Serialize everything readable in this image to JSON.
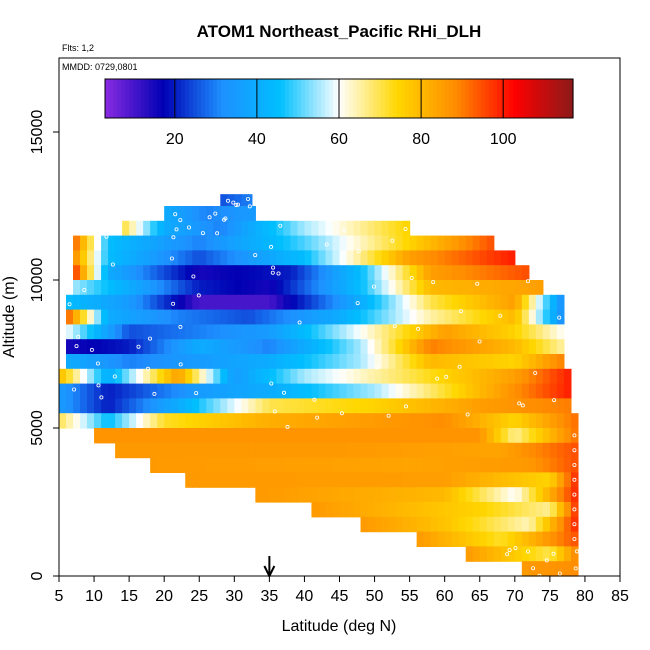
{
  "chart_data": {
    "type": "heatmap",
    "title": "ATOM1 Northeast_Pacific RHi_DLH",
    "flights_note": "Flts: 1,2",
    "date_note": "MMDD: 0729,0801",
    "xlabel": "Latitude (deg N)",
    "ylabel": "Altitude (m)",
    "xlim": [
      5,
      85
    ],
    "ylim": [
      0,
      17500
    ],
    "xticks": [
      5,
      10,
      15,
      20,
      25,
      30,
      35,
      40,
      45,
      50,
      55,
      60,
      65,
      70,
      75,
      80,
      85
    ],
    "yticks": [
      0,
      5000,
      10000,
      15000
    ],
    "colorbar": {
      "range": [
        3,
        117
      ],
      "ticks": [
        20,
        40,
        60,
        80,
        100
      ],
      "colors": [
        "#8A2BE2",
        "#0000B3",
        "#1E90FF",
        "#00BFFF",
        "#FFFFFF",
        "#FFD700",
        "#FF8C00",
        "#FF0000",
        "#8B1A1A"
      ]
    },
    "marker_latitude": 35,
    "bands": [
      {
        "alt_range": [
          12500,
          12900
        ],
        "lat_range": [
          28,
          32.5
        ],
        "values": [
          [
            28,
            25
          ],
          [
            32.5,
            30
          ]
        ]
      },
      {
        "alt_range": [
          12000,
          12500
        ],
        "lat_range": [
          20,
          33
        ],
        "values": [
          [
            20,
            40
          ],
          [
            26,
            30
          ],
          [
            33,
            35
          ]
        ]
      },
      {
        "alt_range": [
          11500,
          12000
        ],
        "lat_range": [
          14,
          55
        ],
        "values": [
          [
            14,
            72
          ],
          [
            20,
            40
          ],
          [
            28,
            30
          ],
          [
            40,
            55
          ],
          [
            55,
            75
          ]
        ]
      },
      {
        "alt_range": [
          11000,
          11500
        ],
        "lat_range": [
          7,
          67
        ],
        "values": [
          [
            7,
            95
          ],
          [
            12,
            45
          ],
          [
            25,
            30
          ],
          [
            40,
            50
          ],
          [
            55,
            75
          ],
          [
            67,
            95
          ]
        ]
      },
      {
        "alt_range": [
          10500,
          11000
        ],
        "lat_range": [
          7,
          70
        ],
        "values": [
          [
            7,
            90
          ],
          [
            12,
            45
          ],
          [
            25,
            25
          ],
          [
            40,
            45
          ],
          [
            55,
            85
          ],
          [
            70,
            100
          ]
        ]
      },
      {
        "alt_range": [
          10000,
          10500
        ],
        "lat_range": [
          7,
          72
        ],
        "values": [
          [
            7,
            100
          ],
          [
            12,
            40
          ],
          [
            25,
            15
          ],
          [
            38,
            20
          ],
          [
            48,
            45
          ],
          [
            58,
            85
          ],
          [
            72,
            95
          ]
        ]
      },
      {
        "alt_range": [
          9500,
          10000
        ],
        "lat_range": [
          7,
          74
        ],
        "values": [
          [
            7,
            55
          ],
          [
            15,
            40
          ],
          [
            25,
            20
          ],
          [
            35,
            15
          ],
          [
            48,
            45
          ],
          [
            58,
            80
          ],
          [
            74,
            85
          ]
        ]
      },
      {
        "alt_range": [
          9000,
          9500
        ],
        "lat_range": [
          6,
          77
        ],
        "values": [
          [
            6,
            45
          ],
          [
            15,
            35
          ],
          [
            25,
            10
          ],
          [
            35,
            10
          ],
          [
            48,
            40
          ],
          [
            58,
            70
          ],
          [
            70,
            85
          ],
          [
            77,
            30
          ]
        ]
      },
      {
        "alt_range": [
          8500,
          9000
        ],
        "lat_range": [
          6,
          77
        ],
        "values": [
          [
            6,
            95
          ],
          [
            12,
            40
          ],
          [
            22,
            30
          ],
          [
            32,
            25
          ],
          [
            45,
            40
          ],
          [
            58,
            65
          ],
          [
            70,
            80
          ],
          [
            77,
            30
          ]
        ]
      },
      {
        "alt_range": [
          8000,
          8500
        ],
        "lat_range": [
          6,
          77
        ],
        "values": [
          [
            6,
            60
          ],
          [
            15,
            25
          ],
          [
            25,
            30
          ],
          [
            35,
            35
          ],
          [
            48,
            60
          ],
          [
            60,
            85
          ],
          [
            70,
            75
          ],
          [
            77,
            60
          ]
        ]
      },
      {
        "alt_range": [
          7500,
          8000
        ],
        "lat_range": [
          6,
          77
        ],
        "values": [
          [
            6,
            15
          ],
          [
            15,
            20
          ],
          [
            25,
            40
          ],
          [
            35,
            30
          ],
          [
            48,
            55
          ],
          [
            58,
            90
          ],
          [
            70,
            80
          ],
          [
            77,
            65
          ]
        ]
      },
      {
        "alt_range": [
          7000,
          7500
        ],
        "lat_range": [
          6,
          77
        ],
        "values": [
          [
            6,
            40
          ],
          [
            15,
            30
          ],
          [
            25,
            35
          ],
          [
            35,
            40
          ],
          [
            48,
            55
          ],
          [
            58,
            80
          ],
          [
            70,
            75
          ],
          [
            77,
            90
          ]
        ]
      },
      {
        "alt_range": [
          6500,
          7000
        ],
        "lat_range": [
          5,
          78
        ],
        "values": [
          [
            5,
            80
          ],
          [
            12,
            40
          ],
          [
            22,
            85
          ],
          [
            30,
            35
          ],
          [
            40,
            55
          ],
          [
            55,
            70
          ],
          [
            70,
            85
          ],
          [
            78,
            100
          ]
        ]
      },
      {
        "alt_range": [
          6000,
          6500
        ],
        "lat_range": [
          5,
          78
        ],
        "values": [
          [
            5,
            35
          ],
          [
            12,
            20
          ],
          [
            25,
            35
          ],
          [
            35,
            40
          ],
          [
            50,
            55
          ],
          [
            65,
            80
          ],
          [
            78,
            100
          ]
        ]
      },
      {
        "alt_range": [
          5500,
          6000
        ],
        "lat_range": [
          5,
          78
        ],
        "values": [
          [
            5,
            35
          ],
          [
            12,
            20
          ],
          [
            22,
            40
          ],
          [
            35,
            70
          ],
          [
            50,
            75
          ],
          [
            65,
            85
          ],
          [
            78,
            90
          ]
        ]
      },
      {
        "alt_range": [
          5000,
          5500
        ],
        "lat_range": [
          5,
          79
        ],
        "values": [
          [
            5,
            70
          ],
          [
            12,
            45
          ],
          [
            20,
            72
          ],
          [
            35,
            82
          ],
          [
            60,
            88
          ],
          [
            70,
            75
          ],
          [
            79,
            92
          ]
        ]
      },
      {
        "alt_range": [
          4500,
          5000
        ],
        "lat_range": [
          10,
          79
        ],
        "values": [
          [
            10,
            87
          ],
          [
            40,
            87
          ],
          [
            65,
            87
          ],
          [
            70,
            66
          ],
          [
            79,
            92
          ]
        ]
      },
      {
        "alt_range": [
          4000,
          4500
        ],
        "lat_range": [
          13,
          79
        ],
        "values": [
          [
            13,
            86
          ],
          [
            45,
            86
          ],
          [
            68,
            84
          ],
          [
            79,
            95
          ]
        ]
      },
      {
        "alt_range": [
          3500,
          4000
        ],
        "lat_range": [
          18,
          79
        ],
        "values": [
          [
            18,
            86
          ],
          [
            55,
            84
          ],
          [
            72,
            86
          ],
          [
            79,
            95
          ]
        ]
      },
      {
        "alt_range": [
          3000,
          3500
        ],
        "lat_range": [
          23,
          79
        ],
        "values": [
          [
            23,
            86
          ],
          [
            60,
            85
          ],
          [
            75,
            75
          ],
          [
            79,
            100
          ]
        ]
      },
      {
        "alt_range": [
          2500,
          3000
        ],
        "lat_range": [
          33,
          79
        ],
        "values": [
          [
            33,
            86
          ],
          [
            60,
            80
          ],
          [
            70,
            60
          ],
          [
            79,
            100
          ]
        ]
      },
      {
        "alt_range": [
          2000,
          2500
        ],
        "lat_range": [
          41,
          79
        ],
        "values": [
          [
            41,
            86
          ],
          [
            65,
            75
          ],
          [
            75,
            66
          ],
          [
            79,
            100
          ]
        ]
      },
      {
        "alt_range": [
          1500,
          2000
        ],
        "lat_range": [
          48,
          79
        ],
        "values": [
          [
            48,
            86
          ],
          [
            60,
            78
          ],
          [
            72,
            64
          ],
          [
            79,
            100
          ]
        ]
      },
      {
        "alt_range": [
          1000,
          1500
        ],
        "lat_range": [
          56,
          79
        ],
        "values": [
          [
            56,
            86
          ],
          [
            68,
            72
          ],
          [
            79,
            95
          ]
        ]
      },
      {
        "alt_range": [
          500,
          1000
        ],
        "lat_range": [
          63,
          79
        ],
        "values": [
          [
            63,
            86
          ],
          [
            75,
            70
          ],
          [
            79,
            90
          ]
        ]
      },
      {
        "alt_range": [
          0,
          500
        ],
        "lat_range": [
          71,
          79
        ],
        "values": [
          [
            71,
            86
          ],
          [
            79,
            88
          ]
        ]
      }
    ]
  }
}
